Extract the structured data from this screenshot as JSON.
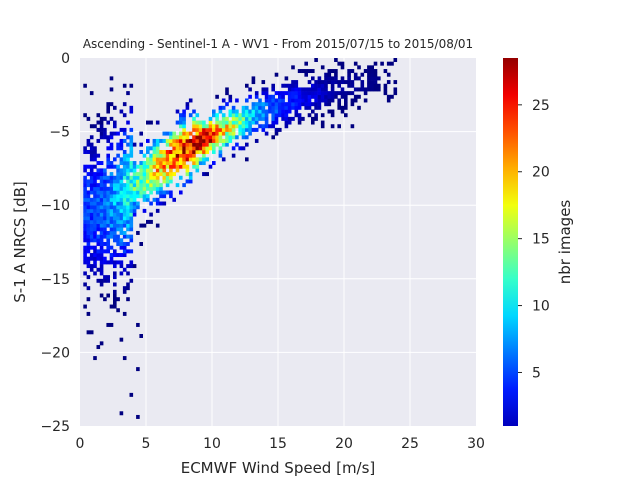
{
  "chart_data": {
    "type": "heatmap",
    "title": "Ascending - Sentinel-1 A - WV1 - From 2015/07/15 to 2015/08/01",
    "xlabel": "ECMWF Wind Speed [m/s]",
    "ylabel": "S-1 A NRCS [dB]",
    "xlim": [
      0,
      30
    ],
    "ylim": [
      -25,
      0
    ],
    "xticks": [
      0,
      5,
      10,
      15,
      20,
      25,
      30
    ],
    "yticks": [
      0,
      -5,
      -10,
      -15,
      -20,
      -25
    ],
    "xtick_labels": [
      "0",
      "5",
      "10",
      "15",
      "20",
      "25",
      "30"
    ],
    "ytick_labels": [
      "0",
      "−5",
      "−10",
      "−15",
      "−20",
      "−25"
    ],
    "grid": true,
    "background": "#eaeaf2",
    "colormap": "jet",
    "colorbar": {
      "label": "nbr images",
      "range": [
        1,
        28.5
      ],
      "ticks": [
        5,
        10,
        15,
        20,
        25
      ],
      "tick_labels": [
        "5",
        "10",
        "15",
        "20",
        "25"
      ]
    },
    "bins": {
      "x_width": 0.25,
      "y_height": 0.25
    },
    "density_ridge": {
      "x": [
        1,
        3,
        5,
        7,
        9,
        11,
        13,
        15,
        17,
        19,
        21,
        23
      ],
      "y": [
        -10.5,
        -9.5,
        -8.0,
        -6.8,
        -5.8,
        -4.9,
        -4.1,
        -3.4,
        -2.8,
        -2.3,
        -1.9,
        -1.6
      ]
    },
    "peak_counts": {
      "x": [
        1,
        3,
        5,
        7,
        9,
        11,
        13,
        15,
        17,
        19,
        21,
        23
      ],
      "count": [
        6,
        10,
        16,
        24,
        28,
        18,
        10,
        6,
        4,
        2,
        1.5,
        1
      ]
    }
  }
}
